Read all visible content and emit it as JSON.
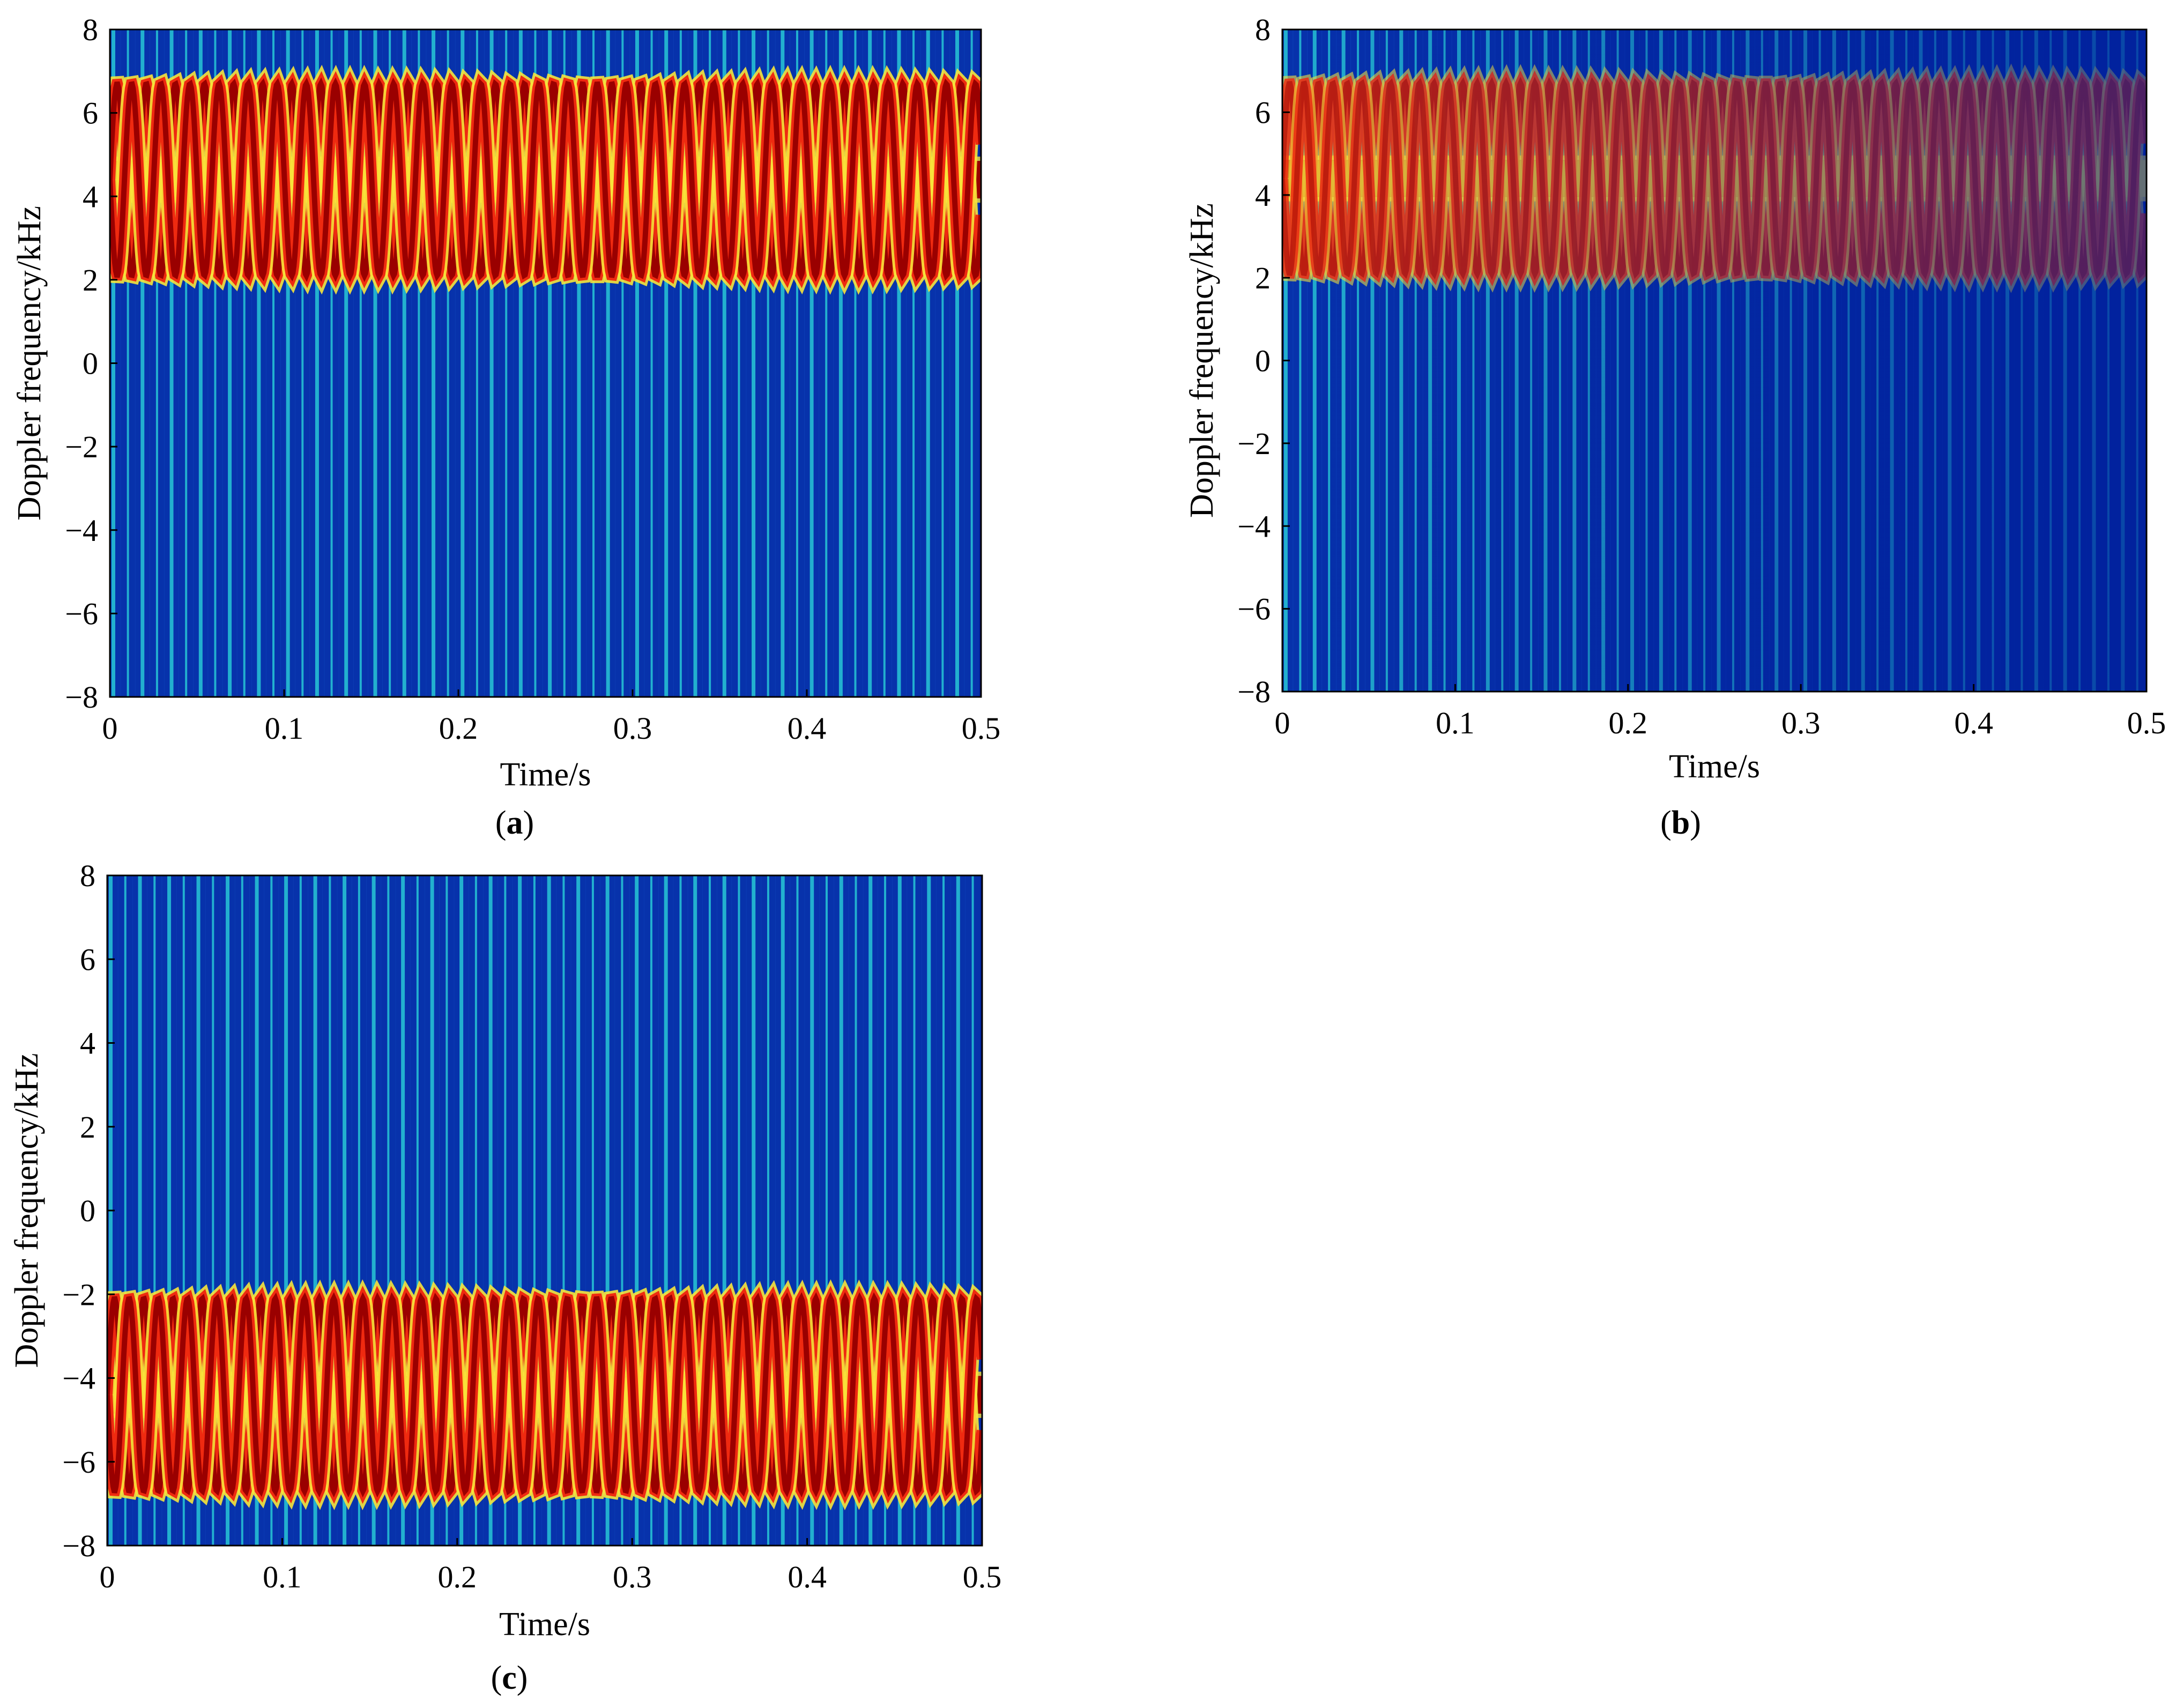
{
  "chart_data": [
    {
      "type": "heatmap",
      "panel": "a",
      "panel_label": "a",
      "xlabel": "Time/s",
      "ylabel": "Doppler frequency/kHz",
      "xlim": [
        0,
        0.5
      ],
      "ylim": [
        -8,
        8
      ],
      "xticks": [
        0,
        0.1,
        0.2,
        0.3,
        0.4,
        0.5
      ],
      "xtick_labels": [
        "0",
        "0.1",
        "0.2",
        "0.3",
        "0.4",
        "0.5"
      ],
      "yticks": [
        8,
        6,
        4,
        2,
        0,
        -2,
        -4,
        -6,
        -8
      ],
      "ytick_labels": [
        "8",
        "6",
        "4",
        "2",
        "0",
        "−2",
        "−4",
        "−6",
        "−8"
      ],
      "center_frequency_khz": 4.4,
      "micro_doppler_amplitude_khz": 2.3,
      "blade_flash_period_s": 0.0167,
      "decay_to_0_5s": 0.0
    },
    {
      "type": "heatmap",
      "panel": "b",
      "panel_label": "b",
      "xlabel": "Time/s",
      "ylabel": "Doppler frequency/kHz",
      "xlim": [
        0,
        0.5
      ],
      "ylim": [
        -8,
        8
      ],
      "xticks": [
        0,
        0.1,
        0.2,
        0.3,
        0.4,
        0.5
      ],
      "xtick_labels": [
        "0",
        "0.1",
        "0.2",
        "0.3",
        "0.4",
        "0.5"
      ],
      "yticks": [
        8,
        6,
        4,
        2,
        0,
        -2,
        -4,
        -6,
        -8
      ],
      "ytick_labels": [
        "8",
        "6",
        "4",
        "2",
        "0",
        "−2",
        "−4",
        "−6",
        "−8"
      ],
      "center_frequency_khz": 4.4,
      "micro_doppler_amplitude_khz": 2.3,
      "blade_flash_period_s": 0.0167,
      "decay_to_0_5s": 0.75
    },
    {
      "type": "heatmap",
      "panel": "c",
      "panel_label": "c",
      "xlabel": "Time/s",
      "ylabel": "Doppler frequency/kHz",
      "xlim": [
        0,
        0.5
      ],
      "ylim": [
        -8,
        8
      ],
      "xticks": [
        0,
        0.1,
        0.2,
        0.3,
        0.4,
        0.5
      ],
      "xtick_labels": [
        "0",
        "0.1",
        "0.2",
        "0.3",
        "0.4",
        "0.5"
      ],
      "yticks": [
        8,
        6,
        4,
        2,
        0,
        -2,
        -4,
        -6,
        -8
      ],
      "ytick_labels": [
        "8",
        "6",
        "4",
        "2",
        "0",
        "−2",
        "−4",
        "−6",
        "−8"
      ],
      "center_frequency_khz": -4.4,
      "micro_doppler_amplitude_khz": 2.3,
      "blade_flash_period_s": 0.0167,
      "decay_to_0_5s": 0.0
    }
  ],
  "colors": {
    "background": "#00209c",
    "flash": "#2ef2d8",
    "yellow": "#f8e43a",
    "red": "#ef2a10",
    "dark_red": "#9a0000",
    "axis": "#000000"
  }
}
